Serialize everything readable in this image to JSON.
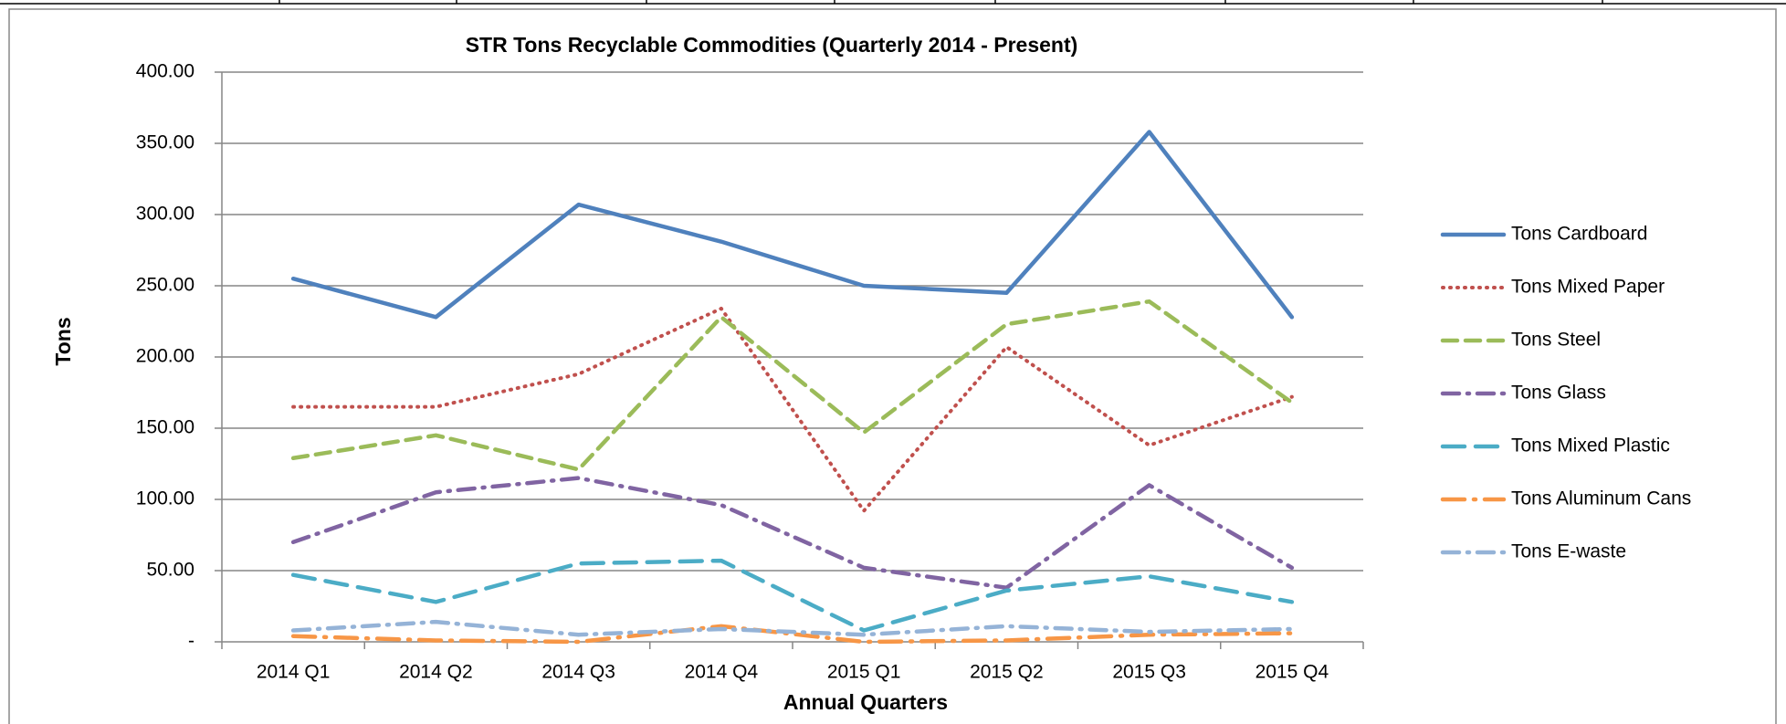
{
  "chart_data": {
    "type": "line",
    "title": "STR Tons Recyclable Commodities  (Quarterly 2014  - Present)",
    "x_label": "Annual Quarters",
    "y_label": "Tons",
    "categories": [
      "2014 Q1",
      "2014 Q2",
      "2014 Q3",
      "2014 Q4",
      "2015 Q1",
      "2015 Q2",
      "2015 Q3",
      "2015 Q4"
    ],
    "series": [
      {
        "name": "Tons Cardboard",
        "color": "#4f81bd",
        "values": [
          255,
          228,
          307,
          281,
          250,
          245,
          358,
          228
        ]
      },
      {
        "name": "Tons Mixed Paper",
        "color": "#c0504d",
        "values": [
          165,
          165,
          188,
          234,
          92,
          207,
          138,
          172
        ]
      },
      {
        "name": "Tons Steel",
        "color": "#9bbb59",
        "values": [
          129,
          145,
          121,
          228,
          147,
          223,
          239,
          168
        ]
      },
      {
        "name": "Tons Glass",
        "color": "#8064a2",
        "values": [
          70,
          105,
          115,
          96,
          52,
          38,
          110,
          52
        ]
      },
      {
        "name": "Tons Mixed Plastic",
        "color": "#4bacc6",
        "values": [
          47,
          28,
          55,
          57,
          8,
          36,
          46,
          28
        ]
      },
      {
        "name": "Tons Aluminum Cans",
        "color": "#f79646",
        "values": [
          4,
          1,
          0,
          11,
          0,
          1,
          5,
          6
        ]
      },
      {
        "name": "Tons E-waste",
        "color": "#95b3d7",
        "values": [
          8,
          14,
          5,
          9,
          5,
          11,
          7,
          9
        ]
      }
    ],
    "ylim": [
      0,
      400
    ],
    "yticks": [
      {
        "value": 0,
        "label": "-"
      },
      {
        "value": 50,
        "label": "50.00"
      },
      {
        "value": 100,
        "label": "100.00"
      },
      {
        "value": 150,
        "label": "150.00"
      },
      {
        "value": 200,
        "label": "200.00"
      },
      {
        "value": 250,
        "label": "250.00"
      },
      {
        "value": 300,
        "label": "300.00"
      },
      {
        "value": 350,
        "label": "350.00"
      },
      {
        "value": 400,
        "label": "400.00"
      }
    ],
    "grid": true,
    "legend": "right"
  }
}
